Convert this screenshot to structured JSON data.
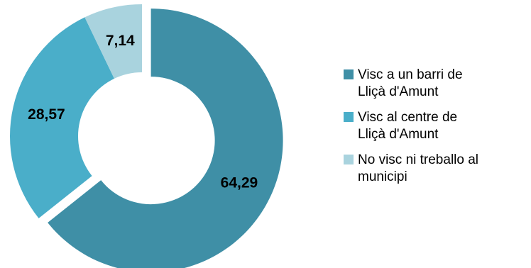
{
  "chart_data": {
    "type": "pie",
    "variant": "donut",
    "title": "",
    "categories": [
      "Visc a un barri de\nLliçà d'Amunt",
      "Visc al centre de\nLliçà d'Amunt",
      "No visc ni treballo al\nmunicipi"
    ],
    "values": [
      64.29,
      28.57,
      7.14
    ],
    "labels": [
      "64,29",
      "28,57",
      "7,14"
    ],
    "colors": [
      "#3f8fa6",
      "#4aaec9",
      "#a9d3de"
    ],
    "legend_position": "right",
    "exploded_slice": "Visc a un barri de\nLliçà d'Amunt"
  }
}
